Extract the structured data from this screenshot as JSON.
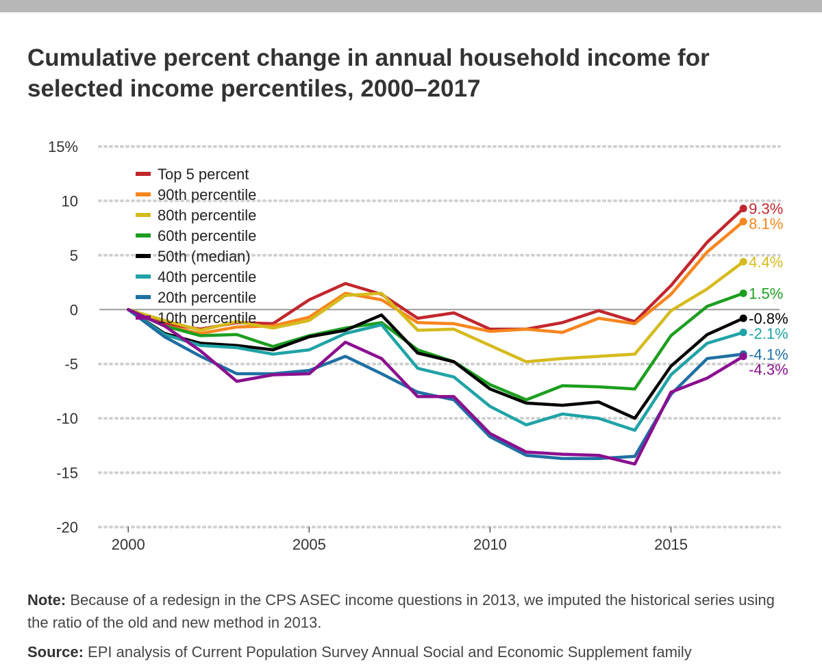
{
  "chart_data": {
    "type": "line",
    "title": "Cumulative percent change in annual household income for selected income percentiles, 2000–2017",
    "x": [
      2000,
      2001,
      2002,
      2003,
      2004,
      2005,
      2006,
      2007,
      2008,
      2009,
      2010,
      2011,
      2012,
      2013,
      2014,
      2015,
      2016,
      2017
    ],
    "xlim": [
      1999.2,
      2018
    ],
    "x_ticks": [
      "2000",
      "2005",
      "2010",
      "2015"
    ],
    "ylim": [
      -20,
      15
    ],
    "y_ticks": [
      "15%",
      "10",
      "5",
      "0",
      "-5",
      "-10",
      "-15",
      "-20"
    ],
    "grid": "horizontal dotted",
    "legend_position": "top-left",
    "series": [
      {
        "name": "Top 5 percent",
        "color": "#c1272d",
        "end_label": "9.3%",
        "values": [
          0,
          -1.3,
          -1.8,
          -1.2,
          -1.3,
          0.9,
          2.4,
          1.4,
          -0.8,
          -0.3,
          -1.8,
          -1.8,
          -1.2,
          -0.1,
          -1.1,
          2.2,
          6.2,
          9.3
        ]
      },
      {
        "name": "90th percentile",
        "color": "#f7861e",
        "end_label": "8.1%",
        "values": [
          0,
          -1.5,
          -2.2,
          -1.6,
          -1.5,
          -0.7,
          1.5,
          0.9,
          -1.2,
          -1.3,
          -2.0,
          -1.8,
          -2.1,
          -0.8,
          -1.3,
          1.4,
          5.3,
          8.1
        ]
      },
      {
        "name": "80th percentile",
        "color": "#d5bb1e",
        "end_label": "4.4%",
        "values": [
          0,
          -1.0,
          -1.9,
          -1.1,
          -1.7,
          -1.0,
          1.3,
          1.5,
          -1.9,
          -1.8,
          -3.3,
          -4.8,
          -4.5,
          -4.3,
          -4.1,
          -0.1,
          1.9,
          4.4
        ]
      },
      {
        "name": "60th percentile",
        "color": "#1d9e20",
        "end_label": "1.5%",
        "values": [
          0,
          -1.5,
          -2.4,
          -2.3,
          -3.4,
          -2.4,
          -1.7,
          -1.2,
          -3.7,
          -4.8,
          -6.9,
          -8.3,
          -7.0,
          -7.1,
          -7.3,
          -2.4,
          0.3,
          1.5
        ]
      },
      {
        "name": "50th (median)",
        "color": "#000000",
        "end_label": "-0.8%",
        "values": [
          0,
          -2.2,
          -3.1,
          -3.3,
          -3.7,
          -2.5,
          -1.9,
          -0.5,
          -4.0,
          -4.8,
          -7.3,
          -8.6,
          -8.8,
          -8.5,
          -10.0,
          -5.2,
          -2.3,
          -0.8
        ]
      },
      {
        "name": "40th percentile",
        "color": "#20a3a6",
        "end_label": "-2.1%",
        "values": [
          0,
          -2.3,
          -3.3,
          -3.5,
          -4.1,
          -3.7,
          -2.2,
          -1.4,
          -5.4,
          -6.2,
          -8.9,
          -10.6,
          -9.6,
          -10.0,
          -11.1,
          -6.0,
          -3.1,
          -2.1
        ]
      },
      {
        "name": "20th percentile",
        "color": "#1f6fa3",
        "end_label": "-4.1%",
        "values": [
          0,
          -2.5,
          -4.3,
          -5.9,
          -5.9,
          -5.6,
          -4.3,
          -5.9,
          -7.6,
          -8.3,
          -11.7,
          -13.4,
          -13.7,
          -13.7,
          -13.5,
          -7.8,
          -4.5,
          -4.1
        ]
      },
      {
        "name": "10th percentile",
        "color": "#8b0f8f",
        "end_label": "-4.3%",
        "values": [
          0,
          -1.5,
          -3.8,
          -6.6,
          -6.0,
          -5.9,
          -3.0,
          -4.5,
          -8.0,
          -8.0,
          -11.4,
          -13.1,
          -13.3,
          -13.4,
          -14.2,
          -7.6,
          -6.3,
          -4.3
        ]
      }
    ]
  },
  "notes": {
    "note_label": "Note:",
    "note_text": " Because of a redesign in the CPS ASEC income questions in 2013, we imputed the historical series using the ratio of the old and new method in 2013.",
    "source_label": "Source:",
    "source_text": " EPI analysis of Current Population Survey Annual Social and Economic Supplement family"
  }
}
